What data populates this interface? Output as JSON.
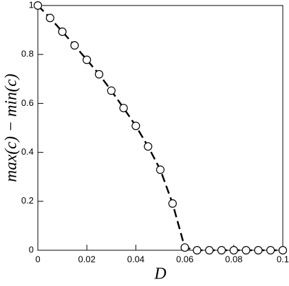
{
  "chart_data": {
    "type": "scatter",
    "x_label": "D",
    "y_label": "max(c) − min(c)",
    "xlim": [
      0,
      0.1
    ],
    "ylim": [
      0,
      1
    ],
    "xticks": [
      0,
      0.02,
      0.04,
      0.06,
      0.08,
      0.1
    ],
    "yticks": [
      0,
      0.2,
      0.4,
      0.6,
      0.8,
      1
    ],
    "line_style": "dashed",
    "color": "#000000",
    "x": [
      0,
      0.005,
      0.01,
      0.015,
      0.02,
      0.025,
      0.03,
      0.035,
      0.04,
      0.045,
      0.05,
      0.055,
      0.06,
      0.065,
      0.07,
      0.075,
      0.08,
      0.085,
      0.09,
      0.095,
      0.1
    ],
    "values": [
      1.0,
      0.949,
      0.893,
      0.837,
      0.778,
      0.719,
      0.652,
      0.581,
      0.508,
      0.424,
      0.329,
      0.191,
      0.011,
      0,
      0,
      0,
      0,
      0,
      0,
      0,
      0
    ]
  }
}
